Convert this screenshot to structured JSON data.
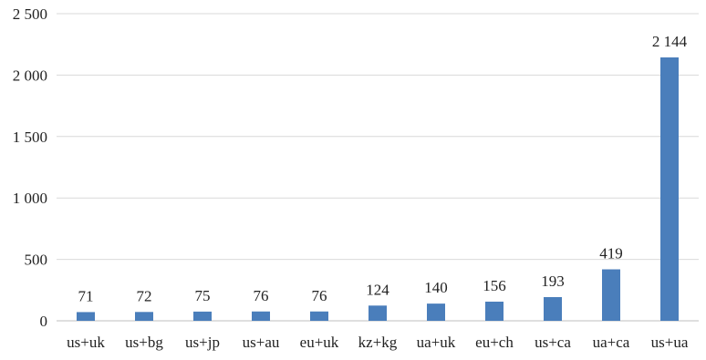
{
  "chart_data": {
    "type": "bar",
    "title": "",
    "xlabel": "",
    "ylabel": "",
    "categories": [
      "us+uk",
      "us+bg",
      "us+jp",
      "us+au",
      "eu+uk",
      "kz+kg",
      "ua+uk",
      "eu+ch",
      "us+ca",
      "ua+ca",
      "us+ua"
    ],
    "values": [
      71,
      72,
      75,
      76,
      76,
      124,
      140,
      156,
      193,
      419,
      2144
    ],
    "value_labels": [
      "71",
      "72",
      "75",
      "76",
      "76",
      "124",
      "140",
      "156",
      "193",
      "419",
      "2 144"
    ],
    "ylim": [
      0,
      2500
    ],
    "yticks": [
      0,
      500,
      1000,
      1500,
      2000,
      2500
    ],
    "ytick_labels": [
      "0",
      "500",
      "1 000",
      "1 500",
      "2 000",
      "2 500"
    ],
    "grid": true,
    "legend": "none",
    "bar_color": "#4a7ebb",
    "grid_color": "#d9d9d9"
  }
}
